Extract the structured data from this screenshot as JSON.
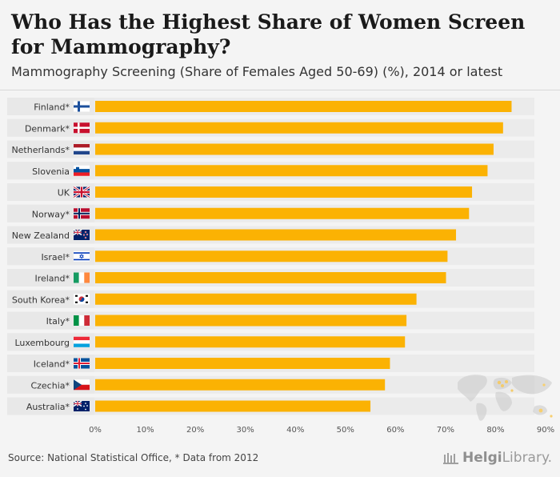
{
  "header": {
    "title": "Who Has the Highest Share of Women Screen for Mammography?",
    "subtitle": "Mammography Screening (Share of Females Aged 50-69) (%), 2014 or latest"
  },
  "footer": {
    "source": "Source: National Statistical Office, * Data from 2012",
    "brand_bold": "Helgi",
    "brand_rest": "Library."
  },
  "colors": {
    "bar": "#fbb203",
    "label_bg": "#e8e8e8",
    "row_bg": "#ebebeb",
    "map": "#c9c9c9",
    "map_highlight": "#fbb203"
  },
  "chart_data": {
    "type": "bar",
    "orientation": "horizontal",
    "title": "Who Has the Highest Share of Women Screen for Mammography?",
    "subtitle": "Mammography Screening (Share of Females Aged 50-69) (%), 2014 or latest",
    "xlabel": "",
    "ylabel": "",
    "xlim": [
      0,
      90
    ],
    "x_ticks": [
      "0%",
      "10%",
      "20%",
      "30%",
      "40%",
      "50%",
      "60%",
      "70%",
      "80%",
      "90%"
    ],
    "categories": [
      "Finland*",
      "Denmark*",
      "Netherlands*",
      "Slovenia",
      "UK",
      "Norway*",
      "New Zealand",
      "Israel*",
      "Ireland*",
      "South Korea*",
      "Italy*",
      "Luxembourg",
      "Iceland*",
      "Czechia*",
      "Australia*"
    ],
    "flags": [
      "finland",
      "denmark",
      "netherlands",
      "slovenia",
      "uk",
      "norway",
      "new-zealand",
      "israel",
      "ireland",
      "south-korea",
      "italy",
      "luxembourg",
      "iceland",
      "czechia",
      "australia"
    ],
    "values": [
      83.2,
      81.5,
      79.6,
      78.4,
      75.3,
      74.7,
      72.1,
      70.4,
      70.1,
      64.2,
      62.2,
      61.9,
      58.9,
      57.9,
      55.0
    ],
    "grid": false,
    "legend": "none"
  }
}
